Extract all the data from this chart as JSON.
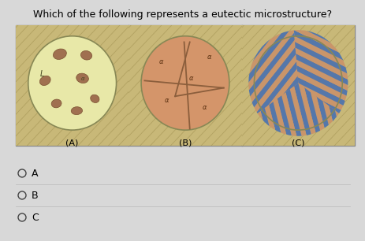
{
  "title": "Which of the following represents a eutectic microstructure?",
  "title_fontsize": 9,
  "bg_color": "#d8d8d8",
  "options": [
    "A",
    "B",
    "C"
  ],
  "labels": [
    "(A)",
    "(B)",
    "(C)"
  ],
  "circle_A_bg": "#e8e8a8",
  "circle_A_blob_color": "#a07050",
  "hatch_bg": "#c8b878",
  "hatch_line": "#a89858",
  "circle_B_bg": "#d4956a",
  "circle_B_line_color": "#8B5E3C",
  "circle_C_stripe1": "#c9956a",
  "circle_C_stripe2": "#5577aa",
  "panel_bg": "#f5f5f0",
  "panel_border": "#888888"
}
